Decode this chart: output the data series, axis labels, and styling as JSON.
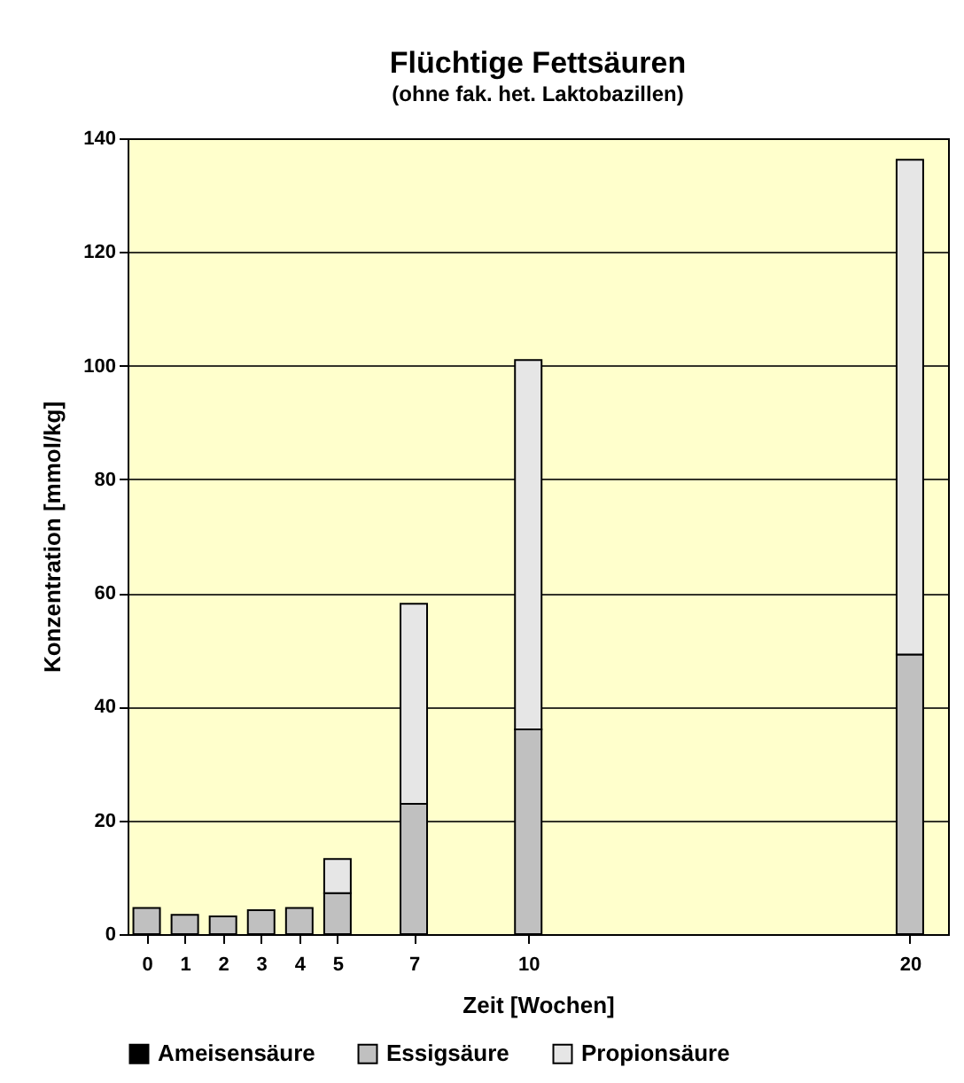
{
  "chart_data": {
    "type": "bar",
    "title": "Flüchtige Fettsäuren",
    "subtitle": "(ohne fak. het. Laktobazillen)",
    "xlabel": "Zeit [Wochen]",
    "ylabel": "Konzentration [mmol/kg]",
    "x": [
      0,
      1,
      2,
      3,
      4,
      5,
      7,
      10,
      20
    ],
    "stacked": true,
    "series": [
      {
        "name": "Ameisensäure",
        "color": "#000000",
        "values": [
          null,
          null,
          null,
          null,
          null,
          null,
          null,
          null,
          null
        ]
      },
      {
        "name": "Essigsäure",
        "color": "#c0c0c0",
        "values": [
          4.6,
          3.4,
          3.1,
          4.2,
          4.6,
          7.2,
          22.9,
          36,
          49.2
        ]
      },
      {
        "name": "Propionsäure",
        "color": "#e6e6e6",
        "values": [
          null,
          null,
          null,
          null,
          null,
          6.0,
          35.2,
          65,
          87
        ]
      }
    ],
    "xlim": [
      -0.5,
      21
    ],
    "xticks": [
      0,
      1,
      2,
      3,
      4,
      5,
      7,
      10,
      20
    ],
    "ylim": [
      0,
      140
    ],
    "yticks": [
      0,
      20,
      40,
      60,
      80,
      100,
      120,
      140
    ],
    "grid": "y",
    "legend": "bottom"
  }
}
